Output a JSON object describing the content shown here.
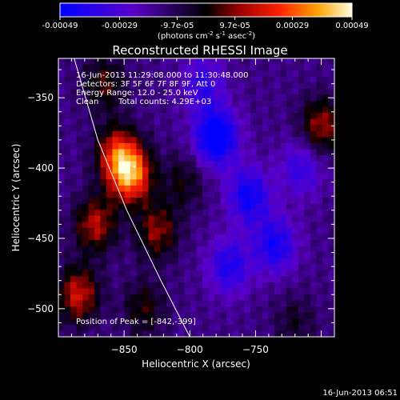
{
  "chart_data": {
    "type": "heatmap",
    "title": "Reconstructed RHESSI Image",
    "xlabel": "Heliocentric X (arcsec)",
    "ylabel": "Heliocentric Y (arcsec)",
    "xlim": [
      -900,
      -690
    ],
    "ylim": [
      -520,
      -322
    ],
    "x_ticks": [
      -850,
      -800,
      -750
    ],
    "y_ticks": [
      -350,
      -400,
      -450,
      -500
    ],
    "colorbar": {
      "label_main": "(photons cm",
      "label_exp1": "-2",
      "label_mid": " s",
      "label_exp2": "-1",
      "label_tail": " asec",
      "label_exp3": "-2",
      "label_end": ")",
      "vmin": -0.00049,
      "vmax": 0.00049,
      "tick_labels": [
        "-0.00049",
        "-0.00029",
        "-9.7e-05",
        "9.7e-05",
        "0.00029",
        "0.00049"
      ],
      "tick_values": [
        -0.00049,
        -0.00029,
        -9.7e-05,
        9.7e-05,
        0.00029,
        0.00049
      ]
    },
    "annotations": {
      "time": "16-Jun-2013 11:29:08.000 to 11:30:48.000",
      "detectors": "Detectors: 3F 5F 6F 7F 8F 9F, Att 0",
      "energy": "Energy Range: 12.0 - 25.0 keV",
      "clean": "Clean",
      "counts": "Total counts: 4.29E+03",
      "peak": "Position of Peak = [-842,-399]"
    },
    "peak_position": [
      -842,
      -399
    ],
    "limb_curve": [
      [
        -888,
        -322
      ],
      [
        -870,
        -380
      ],
      [
        -848,
        -430
      ],
      [
        -822,
        -480
      ],
      [
        -800,
        -520
      ]
    ],
    "sources": [
      {
        "x": -845,
        "y": -405,
        "value": 0.00049
      },
      {
        "x": -855,
        "y": -390,
        "value": 0.00035
      },
      {
        "x": -872,
        "y": -440,
        "value": 0.0003
      },
      {
        "x": -885,
        "y": -490,
        "value": 0.00033
      },
      {
        "x": -825,
        "y": -445,
        "value": 0.00026
      },
      {
        "x": -805,
        "y": -410,
        "value": 0.00015
      },
      {
        "x": -865,
        "y": -340,
        "value": 0.0002
      },
      {
        "x": -835,
        "y": -500,
        "value": 0.00018
      },
      {
        "x": -700,
        "y": -370,
        "value": 0.00028
      },
      {
        "x": -720,
        "y": -510,
        "value": 0.00012
      },
      {
        "x": -780,
        "y": -378,
        "value": -0.00042
      },
      {
        "x": -755,
        "y": -420,
        "value": -0.0003
      },
      {
        "x": -735,
        "y": -455,
        "value": -0.00028
      },
      {
        "x": -770,
        "y": -470,
        "value": -0.00025
      },
      {
        "x": -790,
        "y": -340,
        "value": -0.0002
      },
      {
        "x": -715,
        "y": -400,
        "value": -0.0002
      }
    ]
  },
  "footer": {
    "timestamp": "16-Jun-2013 06:51"
  }
}
